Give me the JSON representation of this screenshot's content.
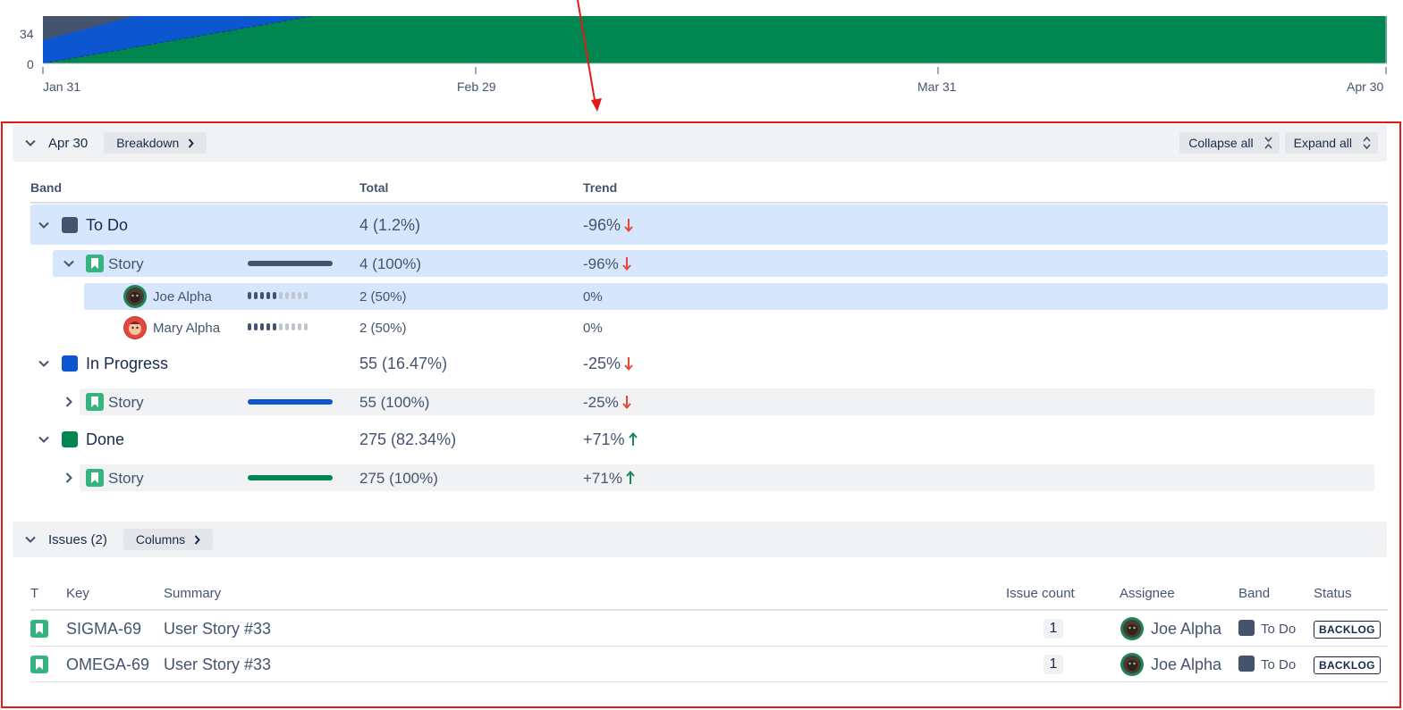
{
  "chart_data": {
    "type": "area",
    "x_ticks": [
      "Jan 31",
      "Feb 29",
      "Mar 31",
      "Apr 30"
    ],
    "y_ticks": [
      "34",
      "0"
    ],
    "series": [
      {
        "name": "To Do",
        "color": "#44546f"
      },
      {
        "name": "In Progress",
        "color": "#0c56d0"
      },
      {
        "name": "Done",
        "color": "#008751"
      }
    ]
  },
  "breakdown": {
    "date": "Apr 30",
    "breakdown_button": "Breakdown",
    "collapse_all": "Collapse all",
    "expand_all": "Expand all",
    "headers": {
      "band": "Band",
      "total": "Total",
      "trend": "Trend"
    },
    "bands": [
      {
        "name": "To Do",
        "color": "#44546f",
        "total": "4 (1.2%)",
        "trend": "-96%",
        "trend_dir": "down",
        "story": {
          "label": "Story",
          "total": "4 (100%)",
          "trend": "-96%",
          "trend_dir": "down",
          "bar_color": "#44546f"
        },
        "people": [
          {
            "name": "Joe Alpha",
            "total": "2 (50%)",
            "trend": "0%",
            "filled": 5
          },
          {
            "name": "Mary Alpha",
            "total": "2 (50%)",
            "trend": "0%",
            "filled": 5
          }
        ]
      },
      {
        "name": "In Progress",
        "color": "#0c56d0",
        "total": "55 (16.47%)",
        "trend": "-25%",
        "trend_dir": "down",
        "story": {
          "label": "Story",
          "total": "55 (100%)",
          "trend": "-25%",
          "trend_dir": "down",
          "bar_color": "#0c56d0"
        }
      },
      {
        "name": "Done",
        "color": "#008751",
        "total": "275 (82.34%)",
        "trend": "+71%",
        "trend_dir": "up",
        "story": {
          "label": "Story",
          "total": "275 (100%)",
          "trend": "+71%",
          "trend_dir": "up",
          "bar_color": "#008751"
        }
      }
    ]
  },
  "issues": {
    "title": "Issues (2)",
    "columns_button": "Columns",
    "headers": {
      "type": "T",
      "key": "Key",
      "summary": "Summary",
      "count": "Issue count",
      "assignee": "Assignee",
      "band": "Band",
      "status": "Status"
    },
    "rows": [
      {
        "key": "SIGMA-69",
        "summary": "User Story #33",
        "count": "1",
        "assignee": "Joe Alpha",
        "band": "To Do",
        "status": "BACKLOG"
      },
      {
        "key": "OMEGA-69",
        "summary": "User Story #33",
        "count": "1",
        "assignee": "Joe Alpha",
        "band": "To Do",
        "status": "BACKLOG"
      }
    ]
  },
  "colors": {
    "up": "#1f845a",
    "down": "#e34935",
    "annotation": "#e01a1a"
  }
}
